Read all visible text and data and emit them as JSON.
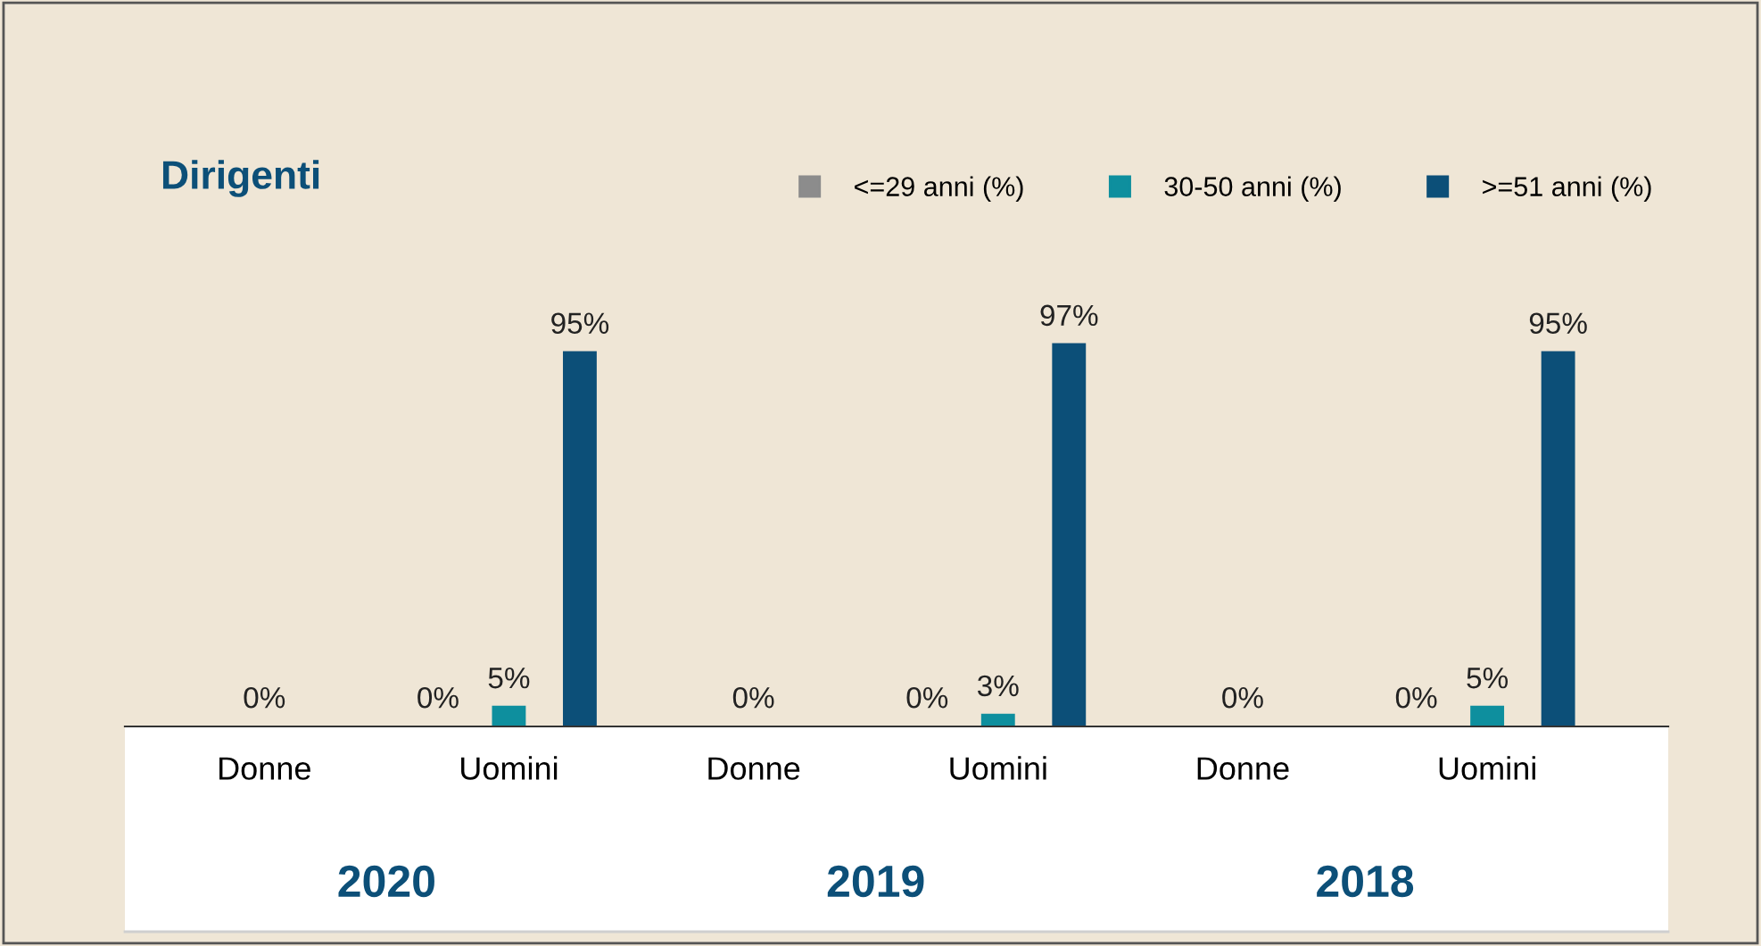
{
  "chart_data": {
    "type": "bar",
    "title": "Dirigenti",
    "categories": [
      "Donne",
      "Uomini",
      "Donne",
      "Uomini",
      "Donne",
      "Uomini"
    ],
    "series": [
      {
        "name": "<=29 anni (%)",
        "color": "#8c8c8c",
        "values": [
          null,
          0,
          null,
          0,
          null,
          0
        ],
        "value_labels": [
          null,
          "0%",
          null,
          "0%",
          null,
          "0%"
        ]
      },
      {
        "name": "30-50 anni (%)",
        "color": "#0e8f9e",
        "values": [
          0,
          5,
          0,
          3,
          0,
          5
        ],
        "value_labels": [
          "0%",
          "5%",
          "0%",
          "3%",
          "0%",
          "5%"
        ]
      },
      {
        "name": ">=51 anni (%)",
        "color": "#0c4f78",
        "values": [
          null,
          95,
          null,
          97,
          null,
          95
        ],
        "value_labels": [
          null,
          "95%",
          null,
          "97%",
          null,
          "95%"
        ]
      }
    ],
    "annotations": [
      "2020",
      "2019",
      "2018"
    ],
    "legend": "top right",
    "grid": false
  }
}
